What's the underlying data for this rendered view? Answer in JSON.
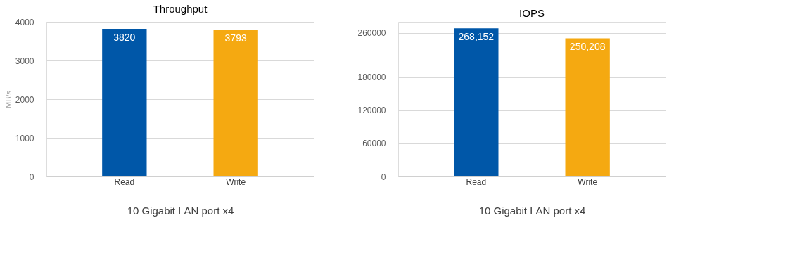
{
  "chart_data": [
    {
      "type": "bar",
      "title": "Throughput",
      "xlabel": "10 Gigabit LAN port x4",
      "ylabel": "MB/s",
      "categories": [
        "Read",
        "Write"
      ],
      "values": [
        3820,
        3793
      ],
      "colors": [
        "#0057a8",
        "#f5a911"
      ],
      "ylim": [
        0,
        4000
      ],
      "yticks": [
        0,
        1000,
        2000,
        3000,
        4000
      ],
      "grid": "y",
      "data_labels": true
    },
    {
      "type": "bar",
      "title": "IOPS",
      "xlabel": "10 Gigabit LAN port x4",
      "categories": [
        "Read",
        "Write"
      ],
      "values": [
        268152,
        250208
      ],
      "value_labels": [
        "268,152",
        "250,208"
      ],
      "colors": [
        "#0057a8",
        "#f5a911"
      ],
      "ylim": [
        0,
        280000
      ],
      "yticks": [
        0,
        60000,
        120000,
        180000,
        260000
      ],
      "grid": "y"
    }
  ]
}
